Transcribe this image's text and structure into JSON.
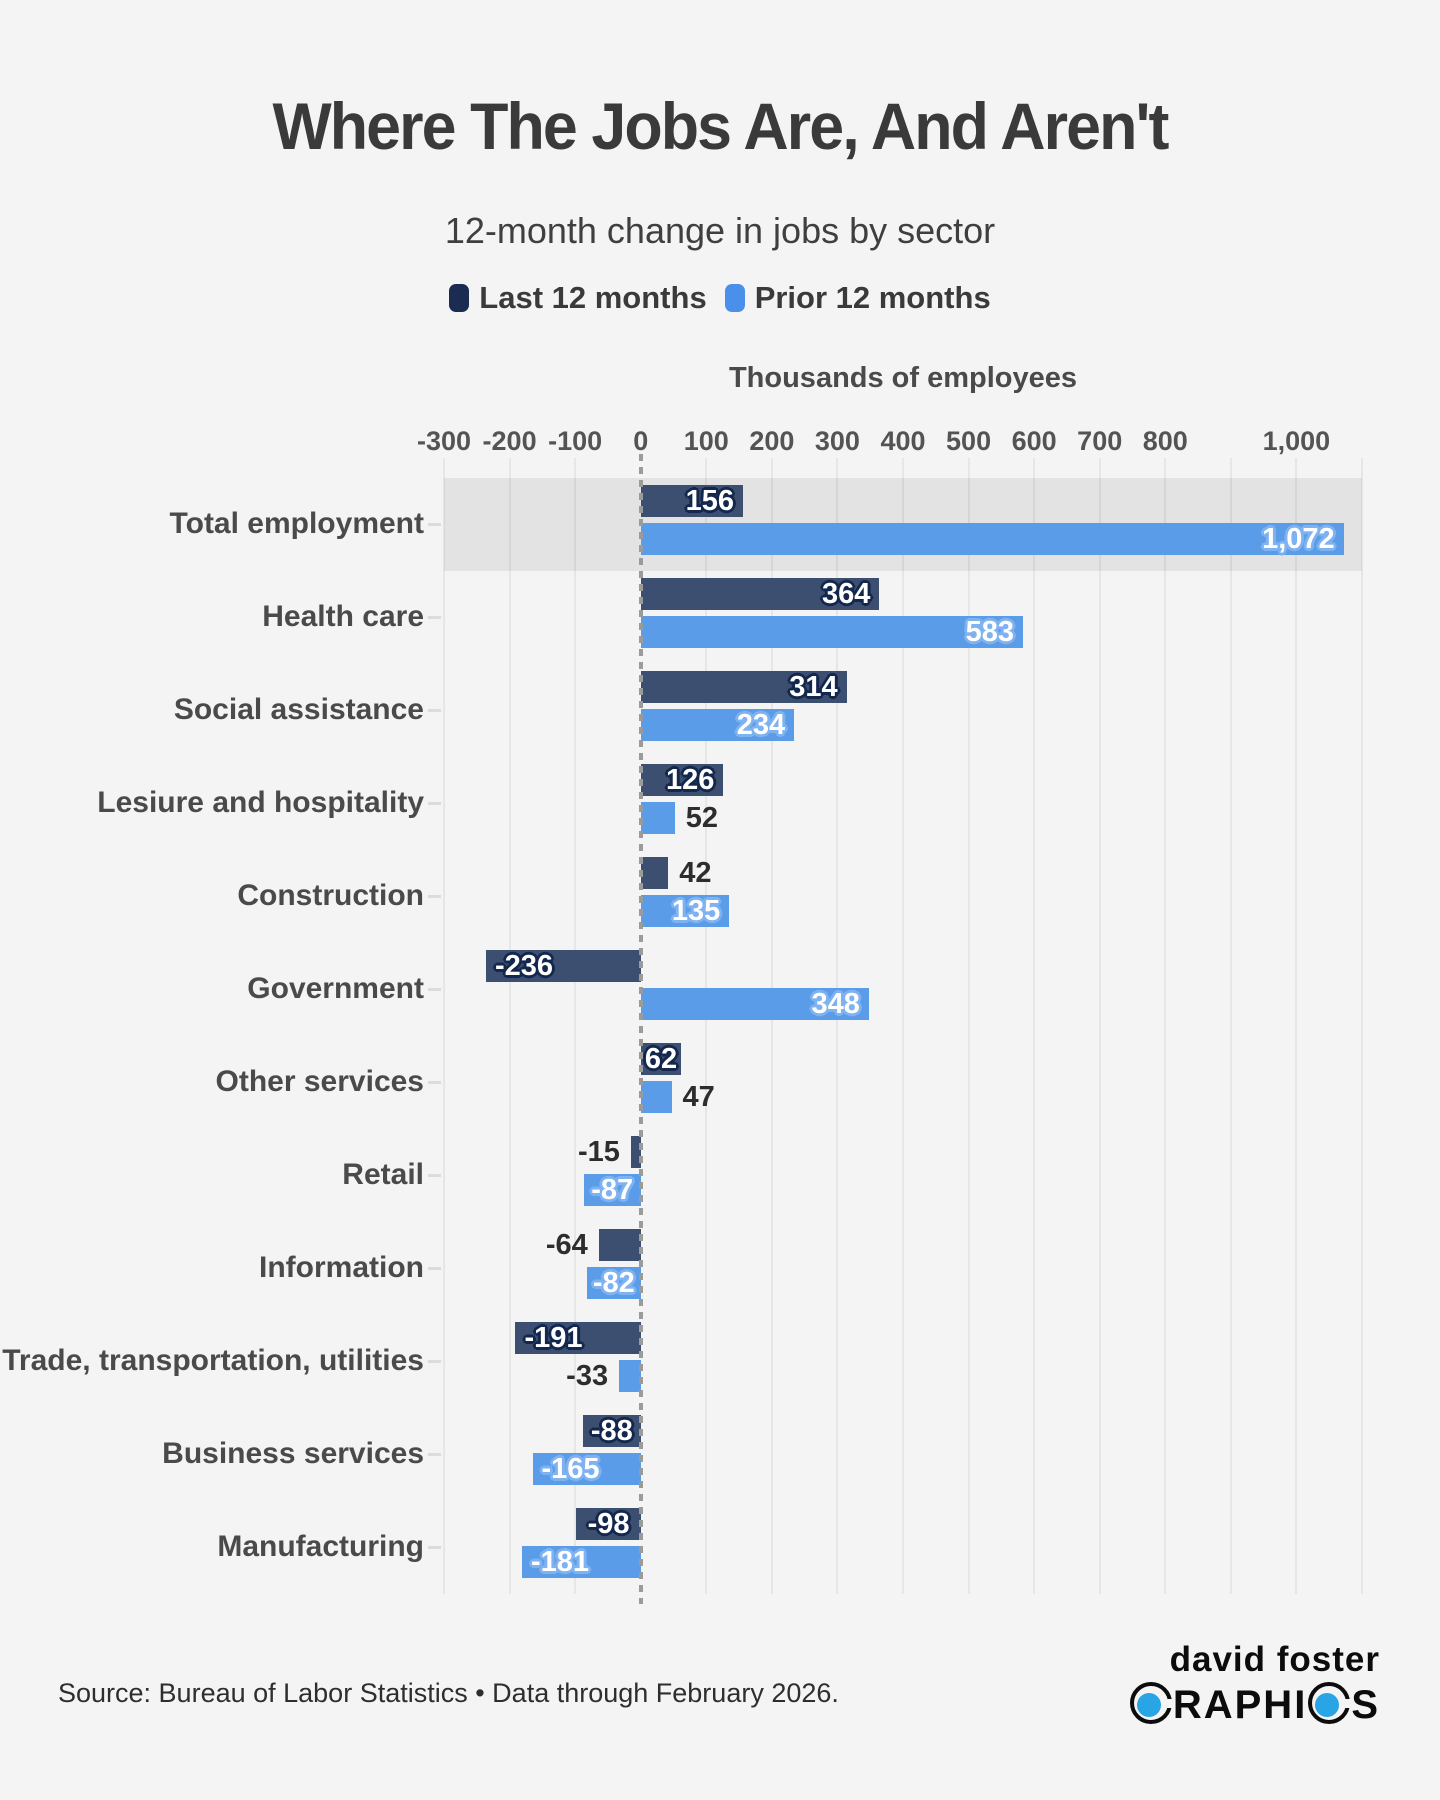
{
  "title": "Where The Jobs Are, And Aren't",
  "subtitle": "12-month change in jobs by sector",
  "legend": [
    {
      "label": "Last 12 months",
      "swatch_color": "#1b2b52"
    },
    {
      "label": "Prior 12 months",
      "swatch_color": "#4a90ea"
    }
  ],
  "chart_data": {
    "type": "bar",
    "orientation": "horizontal",
    "axis_title": "Thousands of employees",
    "unit": "thousands of employees",
    "xlim": [
      -300,
      1100
    ],
    "gridline_step": 100,
    "tick_values": [
      -300,
      -200,
      -100,
      0,
      100,
      200,
      300,
      400,
      500,
      600,
      700,
      800,
      1000
    ],
    "zero_line": true,
    "legend_position": "top",
    "highlight_category": "Total employment",
    "categories": [
      "Total employment",
      "Health care",
      "Social assistance",
      "Lesiure and hospitality",
      "Construction",
      "Government",
      "Other services",
      "Retail",
      "Information",
      "Trade, transportation, utilities",
      "Business services",
      "Manufacturing"
    ],
    "series": [
      {
        "name": "Last 12 months",
        "color": "#3d4f71",
        "values": [
          156,
          364,
          314,
          126,
          42,
          -236,
          62,
          -15,
          -64,
          -191,
          -88,
          -98
        ]
      },
      {
        "name": "Prior 12 months",
        "color": "#5b9ce9",
        "values": [
          1072,
          583,
          234,
          52,
          135,
          348,
          47,
          -87,
          -82,
          -33,
          -165,
          -181
        ]
      }
    ]
  },
  "footer": {
    "source": "Source: Bureau of Labor Statistics • Data through February 2026."
  },
  "logo": {
    "line1": "david foster",
    "line2": "GRAPHICS",
    "circle_letter_indices": [
      0,
      6
    ],
    "accent_color": "#29a4e4"
  }
}
